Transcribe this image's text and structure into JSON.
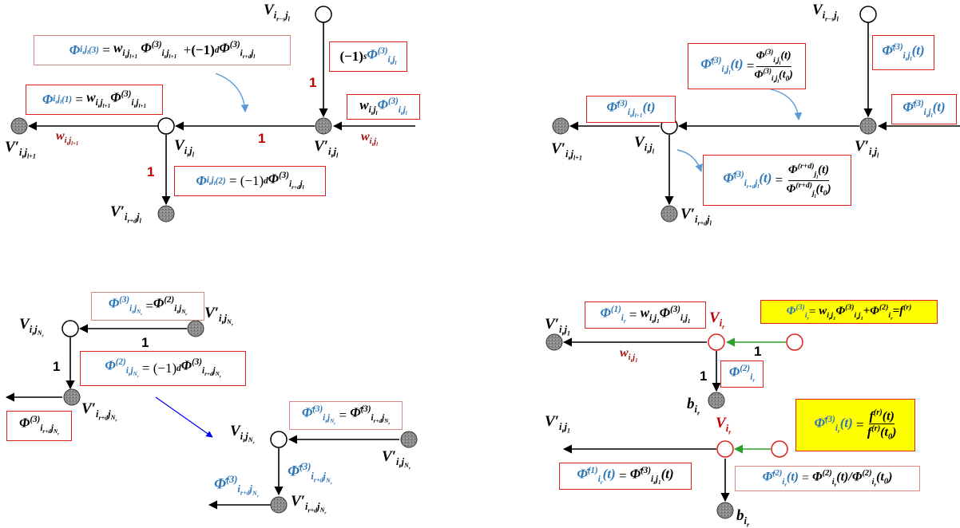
{
  "colors": {
    "node_filled": "#8c8c8c",
    "box_border": "#e0201c",
    "highlight": "#ffff00",
    "phi_blue": "#2e75b6",
    "weight_red": "#a31515",
    "green_arrow": "#2ca02c",
    "blue_arrow": "#0000ee"
  },
  "panel_a": {
    "node_top": "V_{i_{r-s}j_l}",
    "node_center": "V_{i_r j_l}",
    "node_right": "V'_{i_r j_l}",
    "node_left": "V'_{i_r j_{l+1}}",
    "node_bottom": "V'_{i_{r+d} j_l}",
    "edge_top_weight": "1",
    "edge_mid_weight": "1",
    "edge_down_weight": "1",
    "w_left": "w_{i_r j_{l+1}}",
    "w_right": "w_{i_r j_l}",
    "box_phi3": "Φ(3) = w Φ(3) + (−1)^d Φ(3)",
    "box_phi1": "Φ(1) = w Φ(3)",
    "box_phi2": "Φ(2) = (−1)^d Φ(3)",
    "box_top_right": "(−1)^s Φ(3)",
    "box_right": "w Φ(3)"
  },
  "panel_b": {
    "node_top": "V_{i_{r-s}j_l}",
    "node_center": "V_{i_r j_l}",
    "node_right": "V'_{i_r j_l}",
    "node_left": "V'_{i_r j_{l+1}}",
    "node_bottom": "V'_{i_{r+d} j_l}",
    "t": "t",
    "t0": "t0"
  },
  "panel_c": {
    "node_top": "V_{i_r j_{N_r}}",
    "node_right": "V'_{i_r j_{N_r}}",
    "node_bottom": "V'_{i_{r+d} j_{N_r}}",
    "node2_center": "V_{i_r j_{N_r}}",
    "node2_right": "V'_{i_r j_{N_r}}",
    "node2_bottom": "V'_{i_{r+d} j_{N_r}}",
    "edge_h_weight": "1",
    "edge_v_weight": "1"
  },
  "panel_d": {
    "node_v": "V_{i_r}",
    "node_left": "V'_{i_r j_1}",
    "node_b": "b_{i_r}",
    "w": "w_{i_r j_1}",
    "edge_h_weight": "1",
    "edge_v_weight": "1",
    "f": "f^{(r)}"
  }
}
